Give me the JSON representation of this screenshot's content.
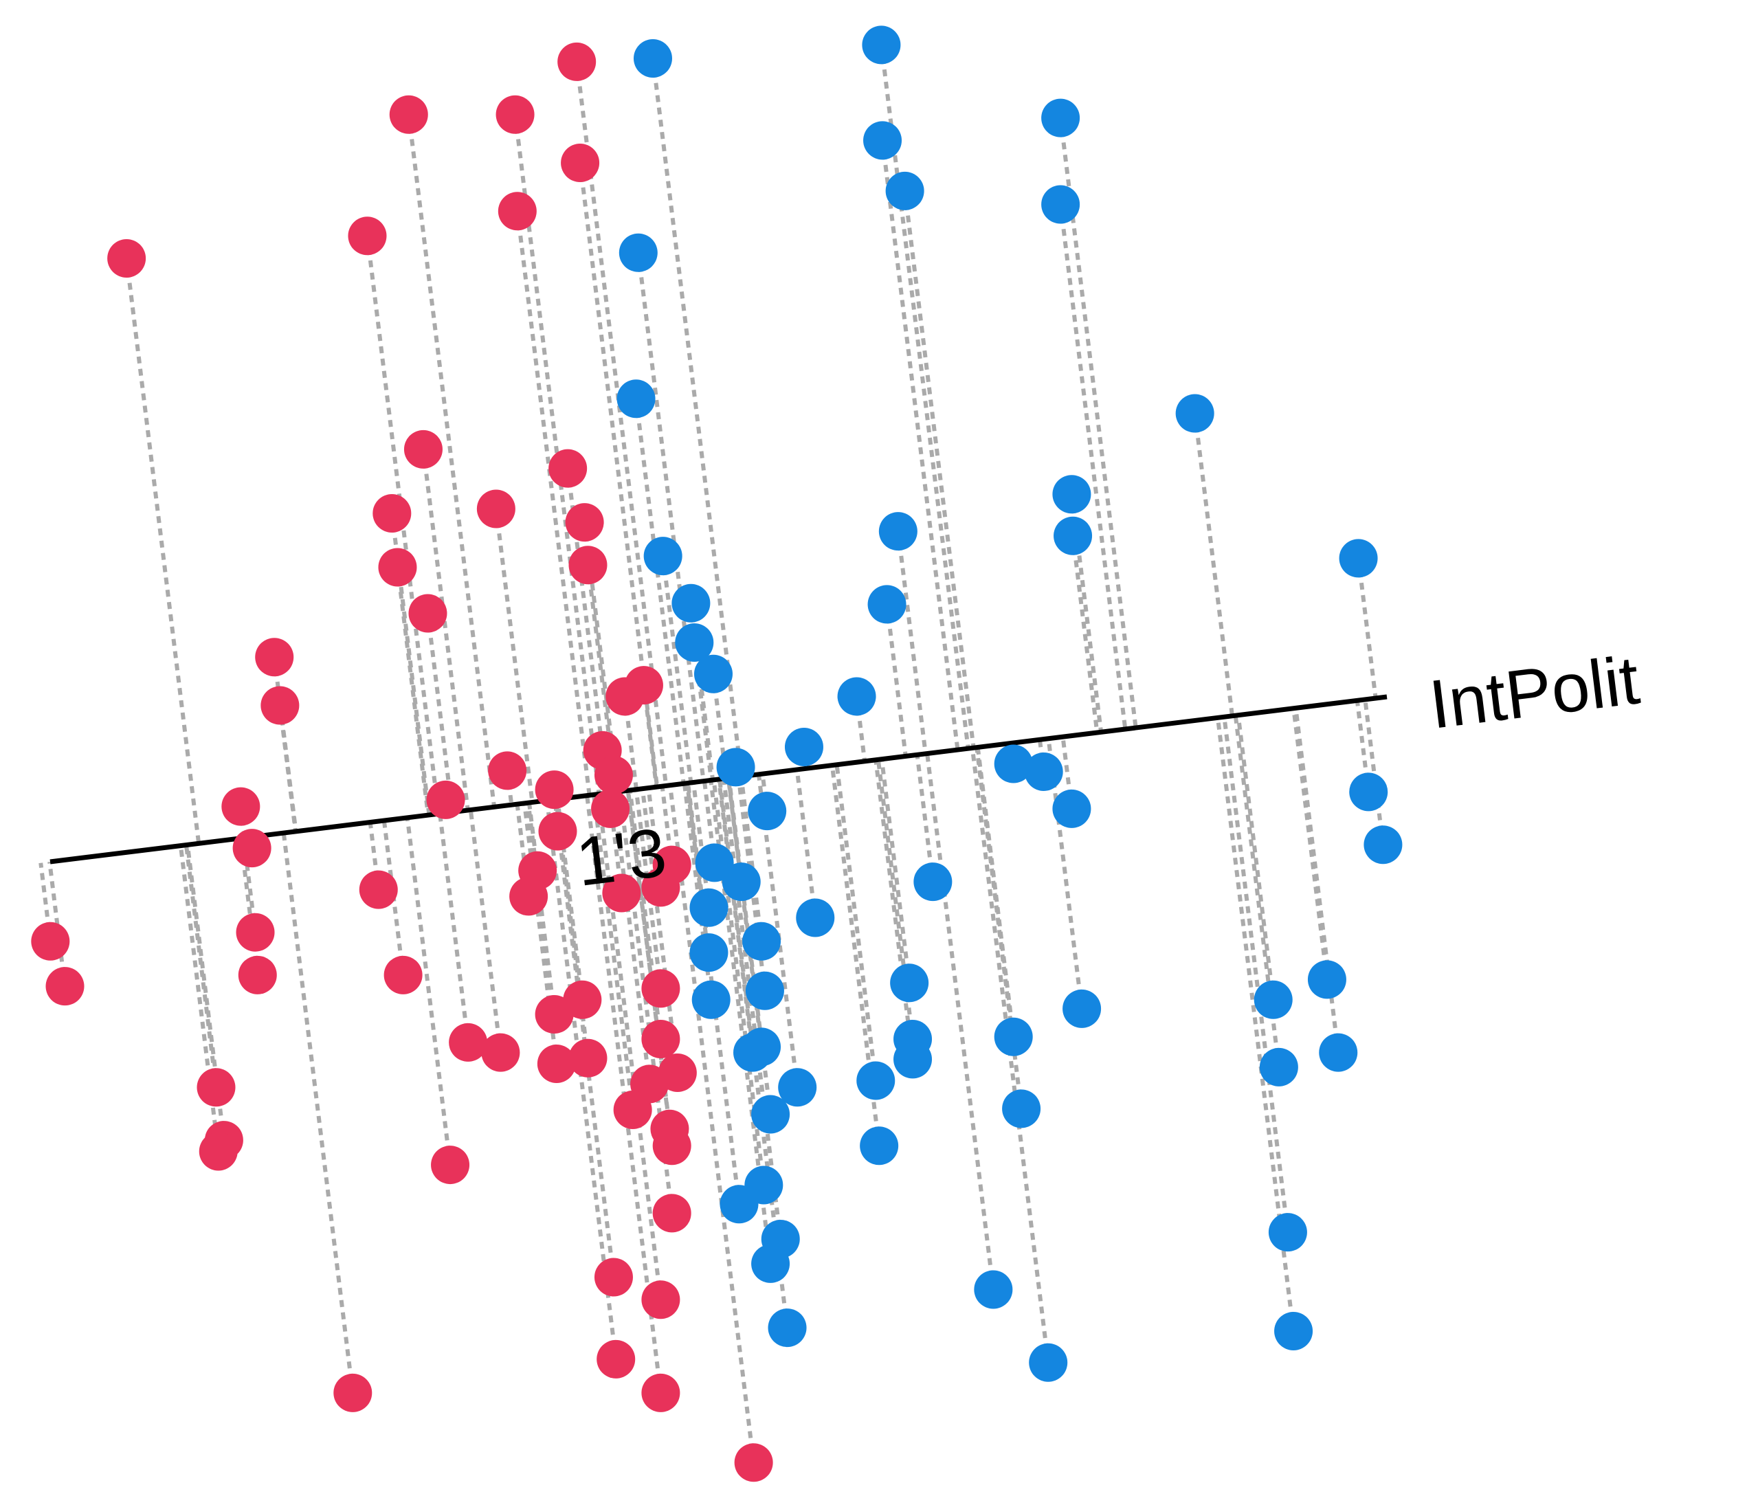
{
  "chart_data": {
    "type": "scatter",
    "axis_label": "IntPolit",
    "annotations": [
      "1'3"
    ],
    "xlim": [
      0,
      1560
    ],
    "ylim": [
      1330,
      0
    ],
    "series": [
      {
        "color": "#e8325a",
        "x": [
          113,
          365,
          460,
          515,
          518,
          462,
          328,
          378,
          350,
          443,
          507,
          522,
          525,
          355,
          382,
          245,
          250,
          215,
          225,
          45,
          58,
          228,
          230,
          338,
          360,
          398,
          453,
          495,
          498,
          480,
          472,
          538,
          548,
          558,
          575,
          545,
          555,
          590,
          600,
          590,
          495,
          520,
          418,
          447,
          497,
          525,
          590,
          605,
          580,
          565,
          598,
          600,
          600,
          193,
          200,
          195,
          402,
          548,
          590,
          550,
          590,
          315,
          673
        ],
        "values": [
          230,
          102,
          102,
          55,
          145,
          188,
          210,
          400,
          457,
          453,
          417,
          465,
          503,
          505,
          546,
          585,
          628,
          718,
          755,
          838,
          878,
          830,
          868,
          792,
          868,
          712,
          686,
          703,
          740,
          775,
          798,
          668,
          690,
          620,
          610,
          720,
          795,
          790,
          770,
          880,
          903,
          890,
          928,
          937,
          947,
          942,
          925,
          955,
          965,
          988,
          1005,
          1020,
          1080,
          968,
          1015,
          1025,
          1037,
          1137,
          1157,
          1210,
          1240,
          1240,
          1302
        ]
      },
      {
        "color": "#1486e0",
        "x": [
          583,
          787,
          788,
          808,
          947,
          947,
          570,
          568,
          1067,
          957,
          958,
          1213,
          802,
          592,
          617,
          620,
          637,
          792,
          765,
          718,
          657,
          905,
          932,
          957,
          685,
          1222,
          1235,
          638,
          662,
          633,
          833,
          728,
          680,
          633,
          683,
          635,
          812,
          966,
          1185,
          1137,
          1142,
          1195,
          680,
          672,
          815,
          815,
          905,
          912,
          712,
          782,
          688,
          785,
          682,
          660,
          697,
          688,
          703,
          887,
          936,
          1150,
          1155
        ],
        "values": [
          52,
          40,
          125,
          170,
          105,
          182,
          225,
          355,
          368,
          440,
          477,
          497,
          473,
          495,
          537,
          572,
          600,
          538,
          620,
          665,
          683,
          680,
          687,
          720,
          722,
          705,
          752,
          768,
          785,
          808,
          785,
          817,
          838,
          848,
          882,
          890,
          875,
          898,
          872,
          890,
          950,
          937,
          932,
          937,
          925,
          943,
          923,
          987,
          968,
          962,
          992,
          1020,
          1055,
          1072,
          1103,
          1125,
          1182,
          1148,
          1213,
          1097,
          1185
        ]
      }
    ]
  }
}
